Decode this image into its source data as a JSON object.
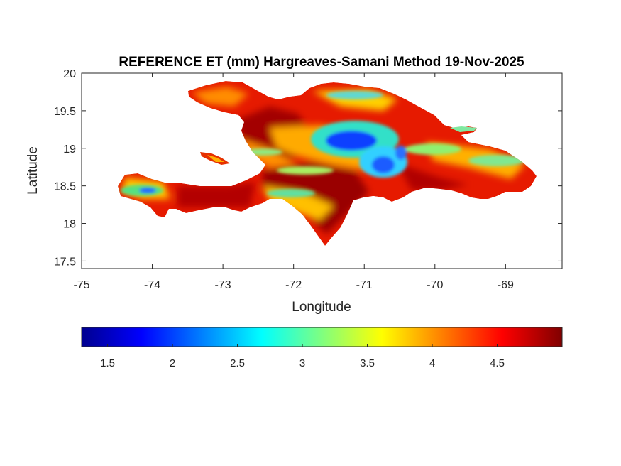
{
  "title": "REFERENCE ET (mm) Hargreaves-Samani Method  19-Nov-2025",
  "map": {
    "xlabel": "Longitude",
    "ylabel": "Latitude",
    "xlim": [
      -75,
      -68.2
    ],
    "ylim": [
      17.4,
      20
    ],
    "xticks": [
      "-75",
      "-74",
      "-73",
      "-72",
      "-71",
      "-70",
      "-69"
    ],
    "yticks": [
      "20",
      "19.5",
      "19",
      "18.5",
      "18",
      "17.5"
    ],
    "xtick_values": [
      -75,
      -74,
      -73,
      -72,
      -71,
      -70,
      -69
    ],
    "ytick_values": [
      20,
      19.5,
      19,
      18.5,
      18,
      17.5
    ],
    "box": true,
    "grid": false,
    "landmass": "Hispaniola (Haiti and Dominican Republic)"
  },
  "colorbar": {
    "orientation": "horizontal",
    "position": "below map",
    "colormap": "jet",
    "range": [
      1.3,
      5.0
    ],
    "tick_labels": [
      "1.5",
      "2",
      "2.5",
      "3",
      "3.5",
      "4",
      "4.5"
    ],
    "tick_values": [
      1.5,
      2,
      2.5,
      3,
      3.5,
      4,
      4.5
    ]
  },
  "colors": {
    "high_et": "#cc0000",
    "mid_et": "#ffaa00",
    "low_et": "#0050ff",
    "axis": "#262626"
  }
}
